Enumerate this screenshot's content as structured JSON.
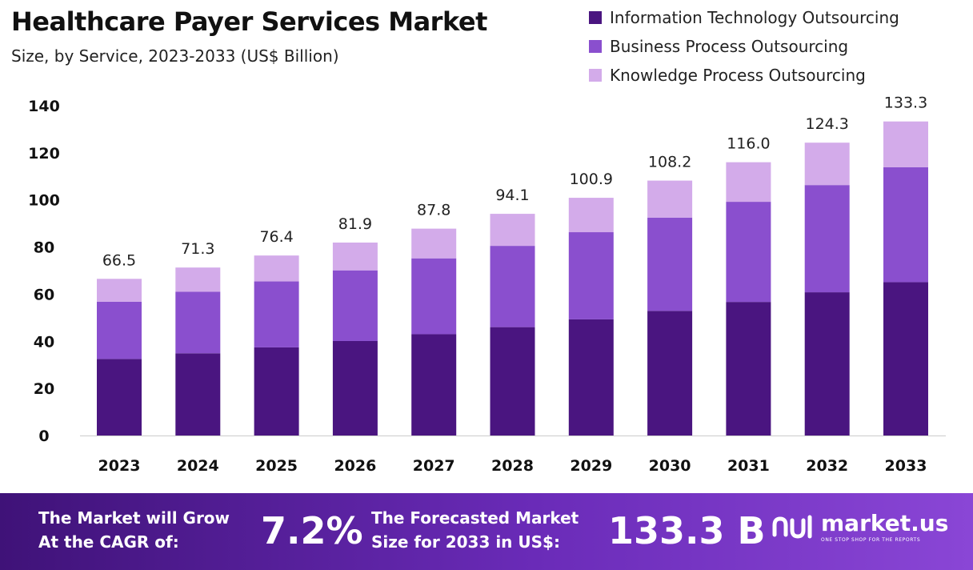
{
  "title": "Healthcare Payer Services Market",
  "subtitle": "Size, by Service, 2023-2033 (US$ Billion)",
  "colors": {
    "ito": "#4a1580",
    "bpo": "#8a4fce",
    "kpo": "#d3abea",
    "banner_start": "#3f1278",
    "banner_end": "#8a46d6"
  },
  "chart_data": {
    "type": "bar",
    "stacked": true,
    "categories": [
      "2023",
      "2024",
      "2025",
      "2026",
      "2027",
      "2028",
      "2029",
      "2030",
      "2031",
      "2032",
      "2033"
    ],
    "series": [
      {
        "name": "Information Technology Outsourcing",
        "color": "#4a1580",
        "values": [
          32.5,
          34.9,
          37.4,
          40.1,
          43.0,
          46.0,
          49.3,
          52.9,
          56.7,
          60.8,
          65.1
        ]
      },
      {
        "name": "Business Process Outsourcing",
        "color": "#8a4fce",
        "values": [
          24.3,
          26.1,
          28.0,
          30.0,
          32.2,
          34.5,
          37.0,
          39.6,
          42.5,
          45.5,
          48.8
        ]
      },
      {
        "name": "Knowledge Process Outsourcing",
        "color": "#d3abea",
        "values": [
          9.7,
          10.3,
          11.0,
          11.8,
          12.6,
          13.6,
          14.6,
          15.7,
          16.8,
          18.0,
          19.4
        ]
      }
    ],
    "totals": [
      "66.5",
      "71.3",
      "76.4",
      "81.9",
      "87.8",
      "94.1",
      "100.9",
      "108.2",
      "116.0",
      "124.3",
      "133.3"
    ],
    "y_ticks": [
      0,
      20,
      40,
      60,
      80,
      100,
      120,
      140
    ],
    "ylim": [
      0,
      140
    ],
    "grid": false,
    "legend_position": "top-right"
  },
  "banner": {
    "cagr_text_line1": "The Market will Grow",
    "cagr_text_line2": "At the CAGR of:",
    "cagr_value": "7.2%",
    "forecast_text_line1": "The Forecasted Market",
    "forecast_text_line2": "Size for 2033 in US$:",
    "forecast_value": "133.3 B",
    "logo_name": "market.us",
    "logo_tagline": "ONE STOP SHOP FOR THE REPORTS",
    "logo_icon": "market-us-logo-icon"
  }
}
